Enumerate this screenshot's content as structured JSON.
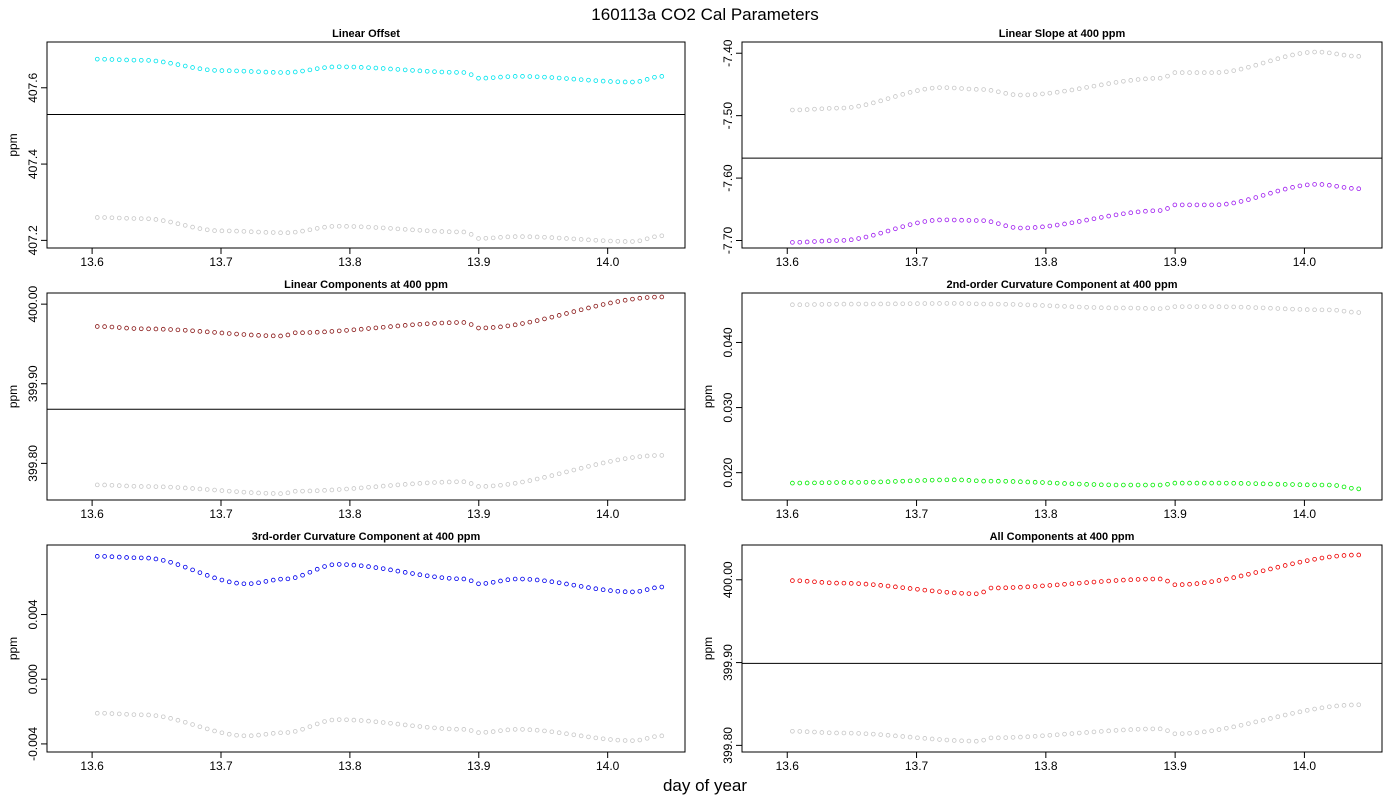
{
  "figure": {
    "title": "160113a   CO2 Cal Parameters",
    "xlabel": "day of year"
  },
  "chart_data": [
    {
      "type": "scatter",
      "title": "Linear Offset",
      "ylabel": "ppm",
      "xlim": [
        13.565,
        14.06
      ],
      "ylim": [
        407.18,
        407.72
      ],
      "xticks": [
        {
          "v": 13.6,
          "label": "13.6"
        },
        {
          "v": 13.7,
          "label": "13.7"
        },
        {
          "v": 13.8,
          "label": "13.8"
        },
        {
          "v": 13.9,
          "label": "13.9"
        },
        {
          "v": 14.0,
          "label": "14.0"
        }
      ],
      "yticks": [
        {
          "v": 407.2,
          "label": "407.2"
        },
        {
          "v": 407.4,
          "label": "407.4"
        },
        {
          "v": 407.6,
          "label": "407.6"
        }
      ],
      "hline": 407.53,
      "x_range": [
        13.604,
        14.042
      ],
      "series": [
        {
          "color": "#00e5ee",
          "keypoints": [
            [
              13.604,
              407.675
            ],
            [
              13.64,
              407.672
            ],
            [
              13.7,
              407.645
            ],
            [
              13.75,
              407.64
            ],
            [
              13.79,
              407.655
            ],
            [
              13.89,
              407.64
            ],
            [
              13.9,
              407.625
            ],
            [
              13.93,
              407.63
            ],
            [
              14.02,
              407.615
            ],
            [
              14.042,
              407.63
            ]
          ]
        },
        {
          "color": "#c8c8c8",
          "keypoints": [
            [
              13.604,
              407.26
            ],
            [
              13.64,
              407.257
            ],
            [
              13.7,
              407.225
            ],
            [
              13.75,
              407.22
            ],
            [
              13.79,
              407.237
            ],
            [
              13.89,
              407.222
            ],
            [
              13.9,
              407.205
            ],
            [
              13.93,
              407.21
            ],
            [
              14.02,
              407.197
            ],
            [
              14.042,
              407.212
            ]
          ]
        }
      ]
    },
    {
      "type": "scatter",
      "title": "Linear Slope at 400 ppm",
      "ylabel": "",
      "xlim": [
        13.565,
        14.06
      ],
      "ylim": [
        -7.712,
        -7.382
      ],
      "xticks": [
        {
          "v": 13.6,
          "label": "13.6"
        },
        {
          "v": 13.7,
          "label": "13.7"
        },
        {
          "v": 13.8,
          "label": "13.8"
        },
        {
          "v": 13.9,
          "label": "13.9"
        },
        {
          "v": 14.0,
          "label": "14.0"
        }
      ],
      "yticks": [
        {
          "v": -7.7,
          "label": "-7.70"
        },
        {
          "v": -7.6,
          "label": "-7.60"
        },
        {
          "v": -7.5,
          "label": "-7.50"
        },
        {
          "v": -7.4,
          "label": "-7.40"
        }
      ],
      "hline": -7.568,
      "x_range": [
        13.604,
        14.042
      ],
      "series": [
        {
          "color": "#c8c8c8",
          "keypoints": [
            [
              13.604,
              -7.491
            ],
            [
              13.64,
              -7.488
            ],
            [
              13.72,
              -7.455
            ],
            [
              13.75,
              -7.458
            ],
            [
              13.78,
              -7.467
            ],
            [
              13.89,
              -7.44
            ],
            [
              13.9,
              -7.431
            ],
            [
              13.93,
              -7.431
            ],
            [
              14.01,
              -7.398
            ],
            [
              14.042,
              -7.405
            ]
          ]
        },
        {
          "color": "#a020f0",
          "keypoints": [
            [
              13.604,
              -7.703
            ],
            [
              13.64,
              -7.7
            ],
            [
              13.72,
              -7.667
            ],
            [
              13.75,
              -7.668
            ],
            [
              13.78,
              -7.68
            ],
            [
              13.89,
              -7.652
            ],
            [
              13.9,
              -7.643
            ],
            [
              13.93,
              -7.643
            ],
            [
              14.01,
              -7.61
            ],
            [
              14.042,
              -7.617
            ]
          ]
        }
      ]
    },
    {
      "type": "scatter",
      "title": "Linear Components at 400 ppm",
      "ylabel": "ppm",
      "xlim": [
        13.565,
        14.06
      ],
      "ylim": [
        399.754,
        400.014
      ],
      "xticks": [
        {
          "v": 13.6,
          "label": "13.6"
        },
        {
          "v": 13.7,
          "label": "13.7"
        },
        {
          "v": 13.8,
          "label": "13.8"
        },
        {
          "v": 13.9,
          "label": "13.9"
        },
        {
          "v": 14.0,
          "label": "14.0"
        }
      ],
      "yticks": [
        {
          "v": 399.8,
          "label": "399.80"
        },
        {
          "v": 399.9,
          "label": "399.90"
        },
        {
          "v": 400.0,
          "label": "400.00"
        }
      ],
      "hline": 399.868,
      "x_range": [
        13.604,
        14.042
      ],
      "series": [
        {
          "color": "#8b1a1a",
          "keypoints": [
            [
              13.604,
              399.972
            ],
            [
              13.64,
              399.969
            ],
            [
              13.75,
              399.96
            ],
            [
              13.755,
              399.964
            ],
            [
              13.89,
              399.977
            ],
            [
              13.9,
              399.97
            ],
            [
              14.042,
              400.009
            ]
          ]
        },
        {
          "color": "#c8c8c8",
          "keypoints": [
            [
              13.604,
              399.773
            ],
            [
              13.64,
              399.771
            ],
            [
              13.75,
              399.762
            ],
            [
              13.755,
              399.765
            ],
            [
              13.89,
              399.777
            ],
            [
              13.9,
              399.771
            ],
            [
              14.042,
              399.81
            ]
          ]
        }
      ]
    },
    {
      "type": "scatter",
      "title": "2nd-order Curvature Component at 400 ppm",
      "ylabel": "ppm",
      "xlim": [
        13.565,
        14.06
      ],
      "ylim": [
        0.0158,
        0.0476
      ],
      "xticks": [
        {
          "v": 13.6,
          "label": "13.6"
        },
        {
          "v": 13.7,
          "label": "13.7"
        },
        {
          "v": 13.8,
          "label": "13.8"
        },
        {
          "v": 13.9,
          "label": "13.9"
        },
        {
          "v": 14.0,
          "label": "14.0"
        }
      ],
      "yticks": [
        {
          "v": 0.02,
          "label": "0.020"
        },
        {
          "v": 0.03,
          "label": "0.030"
        },
        {
          "v": 0.04,
          "label": "0.040"
        }
      ],
      "hline": null,
      "x_range": [
        13.604,
        14.042
      ],
      "series": [
        {
          "color": "#c8c8c8",
          "keypoints": [
            [
              13.604,
              0.0458
            ],
            [
              13.65,
              0.0459
            ],
            [
              13.73,
              0.046
            ],
            [
              13.755,
              0.0459
            ],
            [
              13.86,
              0.0453
            ],
            [
              13.89,
              0.0452
            ],
            [
              13.9,
              0.0455
            ],
            [
              13.93,
              0.0455
            ],
            [
              14.02,
              0.045
            ],
            [
              14.042,
              0.0446
            ]
          ]
        },
        {
          "color": "#00ee00",
          "keypoints": [
            [
              13.604,
              0.0184
            ],
            [
              13.65,
              0.0185
            ],
            [
              13.73,
              0.0189
            ],
            [
              13.755,
              0.0187
            ],
            [
              13.86,
              0.0181
            ],
            [
              13.89,
              0.0181
            ],
            [
              13.9,
              0.0184
            ],
            [
              13.93,
              0.0184
            ],
            [
              14.02,
              0.0181
            ],
            [
              14.042,
              0.0175
            ]
          ]
        }
      ]
    },
    {
      "type": "scatter",
      "title": "3rd-order Curvature Component at 400 ppm",
      "ylabel": "ppm",
      "xlim": [
        13.565,
        14.06
      ],
      "ylim": [
        -0.0045,
        0.0083
      ],
      "xticks": [
        {
          "v": 13.6,
          "label": "13.6"
        },
        {
          "v": 13.7,
          "label": "13.7"
        },
        {
          "v": 13.8,
          "label": "13.8"
        },
        {
          "v": 13.9,
          "label": "13.9"
        },
        {
          "v": 14.0,
          "label": "14.0"
        }
      ],
      "yticks": [
        {
          "v": -0.004,
          "label": "-0.004"
        },
        {
          "v": 0.0,
          "label": "0.000"
        },
        {
          "v": 0.004,
          "label": "0.004"
        }
      ],
      "hline": null,
      "x_range": [
        13.604,
        14.042
      ],
      "series": [
        {
          "color": "#0000ee",
          "keypoints": [
            [
              13.604,
              0.0076
            ],
            [
              13.64,
              0.0075
            ],
            [
              13.72,
              0.0059
            ],
            [
              13.75,
              0.0062
            ],
            [
              13.79,
              0.0071
            ],
            [
              13.89,
              0.0062
            ],
            [
              13.9,
              0.0059
            ],
            [
              13.93,
              0.0062
            ],
            [
              14.02,
              0.0054
            ],
            [
              14.042,
              0.0057
            ]
          ]
        },
        {
          "color": "#c8c8c8",
          "keypoints": [
            [
              13.604,
              -0.0021
            ],
            [
              13.64,
              -0.0022
            ],
            [
              13.72,
              -0.0035
            ],
            [
              13.75,
              -0.0033
            ],
            [
              13.79,
              -0.0025
            ],
            [
              13.89,
              -0.0031
            ],
            [
              13.9,
              -0.0033
            ],
            [
              13.93,
              -0.0031
            ],
            [
              14.02,
              -0.0038
            ],
            [
              14.042,
              -0.0035
            ]
          ]
        }
      ]
    },
    {
      "type": "scatter",
      "title": "All Components at 400 ppm",
      "ylabel": "ppm",
      "xlim": [
        13.565,
        14.06
      ],
      "ylim": [
        399.792,
        400.042
      ],
      "xticks": [
        {
          "v": 13.6,
          "label": "13.6"
        },
        {
          "v": 13.7,
          "label": "13.7"
        },
        {
          "v": 13.8,
          "label": "13.8"
        },
        {
          "v": 13.9,
          "label": "13.9"
        },
        {
          "v": 14.0,
          "label": "14.0"
        }
      ],
      "yticks": [
        {
          "v": 399.8,
          "label": "399.80"
        },
        {
          "v": 399.9,
          "label": "399.90"
        },
        {
          "v": 400.0,
          "label": "400.00"
        }
      ],
      "hline": 399.899,
      "x_range": [
        13.604,
        14.042
      ],
      "series": [
        {
          "color": "#ee0000",
          "keypoints": [
            [
              13.604,
              399.999
            ],
            [
              13.64,
              399.996
            ],
            [
              13.75,
              399.983
            ],
            [
              13.755,
              399.99
            ],
            [
              13.89,
              400.001
            ],
            [
              13.9,
              399.994
            ],
            [
              14.042,
              400.03
            ]
          ]
        },
        {
          "color": "#c8c8c8",
          "keypoints": [
            [
              13.604,
              399.817
            ],
            [
              13.64,
              399.815
            ],
            [
              13.75,
              399.805
            ],
            [
              13.755,
              399.809
            ],
            [
              13.89,
              399.82
            ],
            [
              13.9,
              399.814
            ],
            [
              14.042,
              399.849
            ]
          ]
        }
      ]
    }
  ]
}
